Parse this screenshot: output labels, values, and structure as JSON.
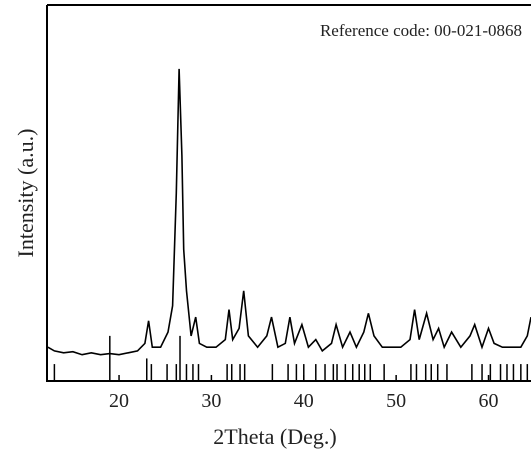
{
  "chart_data": {
    "type": "line",
    "annotation": "Reference code: 00-021-0868",
    "xlabel": "2Theta (Deg.)",
    "ylabel": "Intensity (a.u.)",
    "xlim": [
      12.2,
      64.6
    ],
    "ylim": [
      0,
      100
    ],
    "xticks": [
      20,
      30,
      40,
      50,
      60
    ],
    "series": [
      {
        "style": "line",
        "color": "#000000",
        "x": [
          12.3,
          13,
          14,
          15,
          16,
          17,
          18,
          19,
          20,
          21,
          22,
          22.8,
          23.2,
          23.6,
          24.5,
          25.3,
          25.8,
          26.2,
          26.5,
          26.8,
          27,
          27.3,
          27.8,
          28.3,
          28.7,
          29.5,
          30.5,
          31.5,
          31.9,
          32.3,
          33,
          33.5,
          34,
          35,
          36,
          36.5,
          37.2,
          38,
          38.5,
          39,
          39.8,
          40.5,
          41.3,
          42,
          43,
          43.5,
          44.2,
          45,
          45.7,
          46.5,
          47,
          47.6,
          48.5,
          49.5,
          50.5,
          51.5,
          52,
          52.5,
          53.3,
          54,
          54.6,
          55.2,
          56,
          57,
          58,
          58.5,
          59.3,
          60,
          60.6,
          61.5,
          62.5,
          63.5,
          64.2,
          64.6
        ],
        "values": [
          9,
          8,
          7.5,
          7.8,
          7,
          7.5,
          7,
          7.3,
          7,
          7.5,
          8,
          10,
          16,
          9,
          9,
          13,
          20,
          50,
          83,
          60,
          35,
          24,
          12,
          17,
          10,
          9,
          9,
          11,
          19,
          11,
          14,
          24,
          12,
          9,
          12,
          17,
          9,
          10,
          17,
          10,
          15,
          9,
          11,
          8,
          10,
          15,
          9,
          13,
          9,
          13,
          18,
          12,
          9,
          9,
          9,
          11,
          19,
          11,
          18,
          11,
          14,
          9,
          13,
          9,
          12,
          15,
          9,
          14,
          10,
          9,
          9,
          9,
          12,
          17
        ]
      },
      {
        "style": "stick",
        "color": "#000000",
        "x": [
          13,
          19,
          23,
          23.5,
          25.2,
          26.2,
          26.6,
          27.3,
          28,
          28.6,
          31.7,
          32.2,
          33.1,
          33.6,
          36.6,
          38.3,
          39.2,
          40,
          41.3,
          42.3,
          43.2,
          43.6,
          44.5,
          45.3,
          46,
          46.6,
          47.2,
          48.7,
          51.6,
          52.2,
          53.2,
          53.8,
          54.5,
          55.5,
          58.2,
          59.3,
          60.2,
          61.3,
          62,
          62.7,
          63.5,
          64.2
        ],
        "values": [
          4.5,
          12,
          6,
          4.5,
          4.5,
          4.5,
          12,
          4.5,
          4.5,
          4.5,
          4.5,
          4.5,
          4.5,
          4.5,
          4.5,
          4.5,
          4.5,
          4.5,
          4.5,
          4.5,
          4.5,
          4.5,
          4.5,
          4.5,
          4.5,
          4.5,
          4.5,
          4.5,
          4.5,
          4.5,
          4.5,
          4.5,
          4.5,
          4.5,
          4.5,
          4.5,
          4.5,
          4.5,
          4.5,
          4.5,
          4.5,
          4.5
        ]
      }
    ]
  }
}
